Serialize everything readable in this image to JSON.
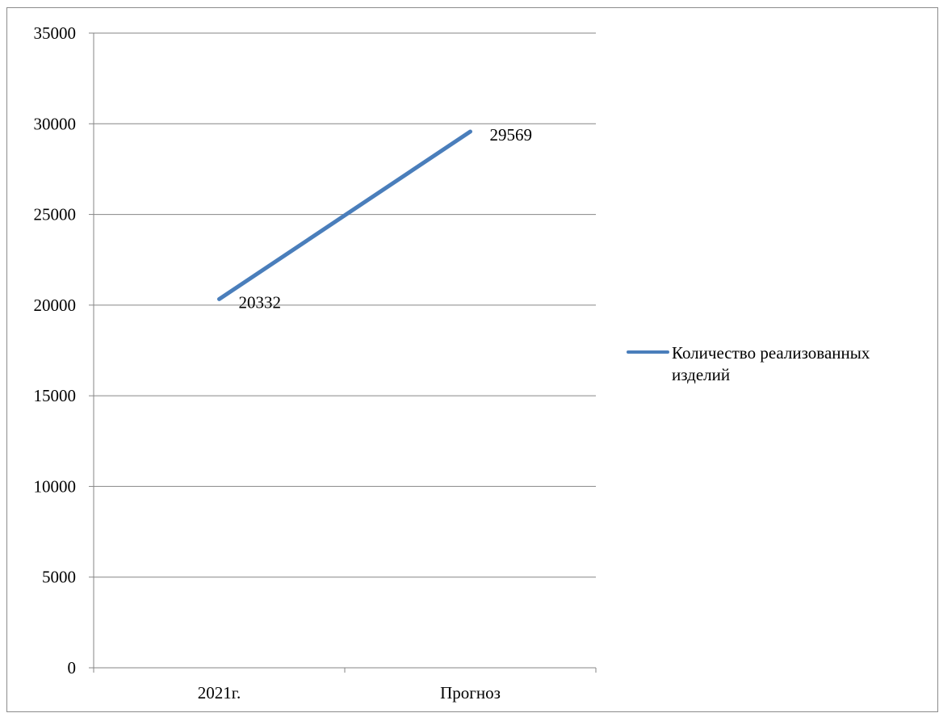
{
  "chart_data": {
    "type": "line",
    "categories": [
      "2021г.",
      "Прогноз"
    ],
    "series": [
      {
        "name": "Количество реализованных изделий",
        "values": [
          20332,
          29569
        ],
        "color": "#4a7ebb",
        "data_labels": [
          "20332",
          "29569"
        ]
      }
    ],
    "ylim": [
      0,
      35000
    ],
    "yticks": [
      0,
      5000,
      10000,
      15000,
      20000,
      25000,
      30000,
      35000
    ],
    "title": "",
    "xlabel": "",
    "ylabel": "",
    "grid": true,
    "legend_position": "right"
  }
}
